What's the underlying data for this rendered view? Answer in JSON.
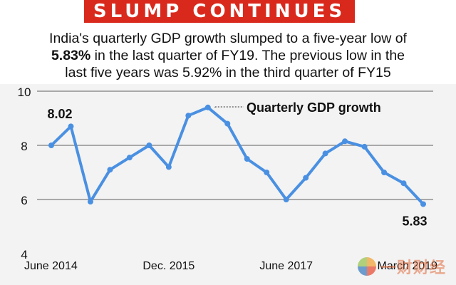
{
  "banner": {
    "title": "SLUMP CONTINUES"
  },
  "subtitle": {
    "line1": "India's quarterly GDP growth slumped to a five-year low of",
    "line2_bold": "5.83%",
    "line2_rest": " in the last quarter of FY19. The previous low in the",
    "line3": "last five years was 5.92% in the third quarter of FY15"
  },
  "watermark": {
    "text": "一财财经"
  },
  "colors": {
    "banner": "#d9291c",
    "line": "#4a90e2",
    "background": "#f3f3f3"
  },
  "chart_data": {
    "type": "line",
    "title": "SLUMP CONTINUES",
    "legend_label": "Quarterly GDP growth",
    "x": [
      0,
      1,
      2,
      3,
      4,
      5,
      6,
      7,
      8,
      9,
      10,
      11,
      12,
      13,
      14,
      15,
      16,
      17,
      18,
      19
    ],
    "x_tick_labels": [
      {
        "index": 0,
        "label": "June 2014"
      },
      {
        "index": 6,
        "label": "Dec. 2015"
      },
      {
        "index": 12,
        "label": "June 2017"
      },
      {
        "index": 19,
        "label": "March 2019"
      }
    ],
    "series": [
      {
        "name": "Quarterly GDP growth",
        "values": [
          8.0,
          8.7,
          5.92,
          7.1,
          7.55,
          8.0,
          7.2,
          9.1,
          9.4,
          8.8,
          7.5,
          7.0,
          6.0,
          6.8,
          7.7,
          8.15,
          7.95,
          7.0,
          6.6,
          5.83
        ]
      }
    ],
    "annotations": [
      {
        "index": 0,
        "text": "8.02"
      },
      {
        "index": 19,
        "text": "5.83"
      }
    ],
    "ylim": [
      4,
      10
    ],
    "y_ticks": [
      4,
      6,
      8,
      10
    ],
    "grid": true
  }
}
